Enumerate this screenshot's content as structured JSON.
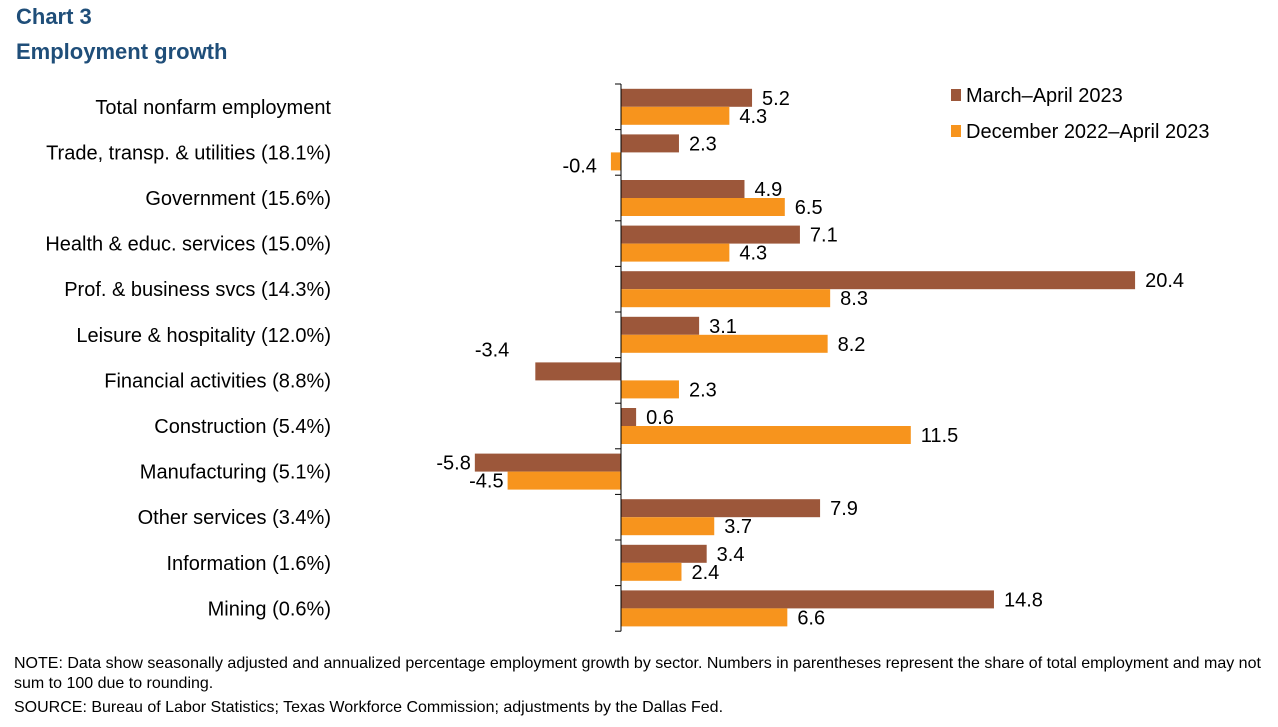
{
  "header": {
    "title": "Chart 3",
    "subtitle": "Employment growth"
  },
  "chart_data": {
    "type": "bar",
    "orientation": "horizontal",
    "title": "Employment growth",
    "xlabel": "",
    "ylabel": "",
    "xlim": [
      -6.5,
      21
    ],
    "grid": false,
    "legend_position": "top-right",
    "categories": [
      "Total nonfarm employment",
      "Trade, transp. & utilities (18.1%)",
      "Government (15.6%)",
      "Health & educ. services (15.0%)",
      "Prof. & business svcs (14.3%)",
      "Leisure & hospitality (12.0%)",
      "Financial activities (8.8%)",
      "Construction (5.4%)",
      "Manufacturing (5.1%)",
      "Other services (3.4%)",
      "Information (1.6%)",
      "Mining (0.6%)"
    ],
    "series": [
      {
        "name": "March–April 2023",
        "color": "#9c573a",
        "values": [
          5.2,
          2.3,
          4.9,
          7.1,
          20.4,
          3.1,
          -3.4,
          0.6,
          -5.8,
          7.9,
          3.4,
          14.8
        ],
        "labels": [
          "5.2",
          "2.3",
          "4.9",
          "7.1",
          "20.4",
          "3.1",
          "-3.4",
          "0.6",
          "-5.8",
          "7.9",
          "3.4",
          "14.8"
        ]
      },
      {
        "name": "December 2022–April 2023",
        "color": "#f7941d",
        "values": [
          4.3,
          -0.4,
          6.5,
          4.3,
          8.3,
          8.2,
          2.3,
          11.5,
          -4.5,
          3.7,
          2.4,
          6.6
        ],
        "labels": [
          "4.3",
          "-0.4",
          "6.5",
          "4.3",
          "8.3",
          "8.2",
          "2.3",
          "11.5",
          "-4.5",
          "3.7",
          "2.4",
          "6.6"
        ]
      }
    ]
  },
  "footer": {
    "note": "NOTE: Data show seasonally adjusted and annualized  percentage employment growth by sector. Numbers in parentheses represent the share of total employment and may not sum to 100 due to rounding.",
    "source": "SOURCE:  Bureau of Labor Statistics; Texas Workforce Commission;  adjustments by the Dallas Fed."
  }
}
